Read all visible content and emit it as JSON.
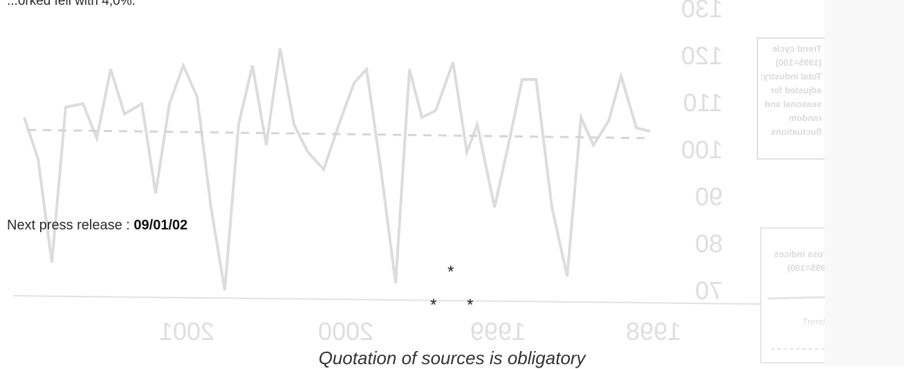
{
  "top_text": "...orked fell with 4,0%.",
  "press_release": {
    "label": "Next press release :",
    "date": "09/01/02"
  },
  "separator": [
    "*",
    "*",
    "*"
  ],
  "footer_note": "Quotation of sources is obligatory",
  "bleed_through_chart": {
    "y_ticks": [
      "130",
      "120",
      "110",
      "100",
      "90",
      "80",
      "70"
    ],
    "x_ticks": [
      "1998",
      "1999",
      "2000",
      "2001"
    ],
    "legend_trend": [
      "Trend cycle",
      "(1995=100)",
      "Total industry:",
      "adjusted for",
      "seasonal and",
      "random",
      "fluctuations"
    ],
    "legend_gross": [
      "Gross indices",
      "(1995=100)"
    ],
    "legend_trend_label": "Trend"
  },
  "colors": {
    "bleed": "#d8d8d8",
    "bleed_line": "#d2d2d2",
    "text": "#2a2a2a"
  }
}
